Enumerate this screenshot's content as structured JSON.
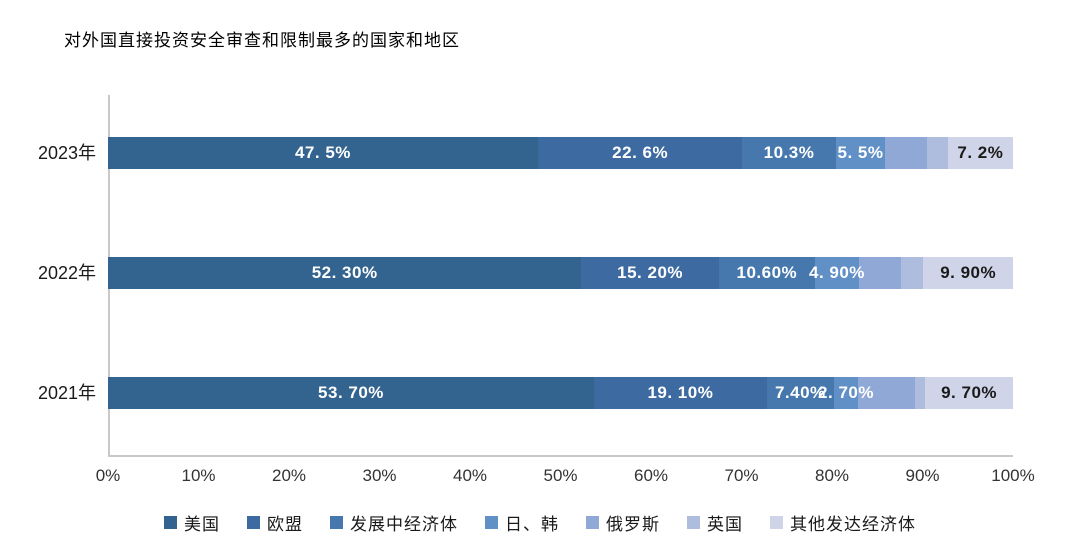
{
  "title": "对外国直接投资安全审查和限制最多的国家和地区",
  "chart_data": {
    "type": "bar",
    "orientation": "horizontal-stacked",
    "title": "对外国直接投资安全审查和限制最多的国家和地区",
    "categories": [
      "2023年",
      "2022年",
      "2021年"
    ],
    "series": [
      {
        "name": "美国",
        "color": "#33638f",
        "label_color": "#ffffff",
        "values": [
          47.5,
          52.3,
          53.7
        ],
        "labels": [
          "47. 5%",
          "52. 30%",
          "53. 70%"
        ]
      },
      {
        "name": "欧盟",
        "color": "#3d6ba1",
        "label_color": "#ffffff",
        "values": [
          22.6,
          15.2,
          19.1
        ],
        "labels": [
          "22. 6%",
          "15. 20%",
          "19. 10%"
        ]
      },
      {
        "name": "发展中经济体",
        "color": "#4678ad",
        "label_color": "#ffffff",
        "values": [
          10.3,
          10.6,
          7.4
        ],
        "labels": [
          "10.3%",
          "10.60%",
          "7.40%"
        ]
      },
      {
        "name": "日、韩",
        "color": "#6190c7",
        "label_color": "#ffffff",
        "values": [
          5.5,
          4.9,
          2.7
        ],
        "labels": [
          "5. 5%",
          "4. 90%",
          "2. 70%"
        ]
      },
      {
        "name": "俄罗斯",
        "color": "#90a8d5",
        "label_color": "#ffffff",
        "values": [
          4.6,
          4.6,
          6.3
        ],
        "labels": [
          "",
          "",
          ""
        ]
      },
      {
        "name": "英国",
        "color": "#aebcde",
        "label_color": "#ffffff",
        "values": [
          2.3,
          2.5,
          1.1
        ],
        "labels": [
          "",
          "",
          ""
        ]
      },
      {
        "name": "其他发达经济体",
        "color": "#d0d4e8",
        "label_color": "#1a1a1a",
        "values": [
          7.2,
          9.9,
          9.7
        ],
        "labels": [
          "7. 2%",
          "9. 90%",
          "9. 70%"
        ]
      }
    ],
    "x_ticks": [
      "0%",
      "10%",
      "20%",
      "30%",
      "40%",
      "50%",
      "60%",
      "70%",
      "80%",
      "90%",
      "100%"
    ],
    "xlim": [
      0,
      100
    ],
    "grid": false,
    "legend_position": "bottom",
    "axis_color": "#c9c9c9"
  }
}
